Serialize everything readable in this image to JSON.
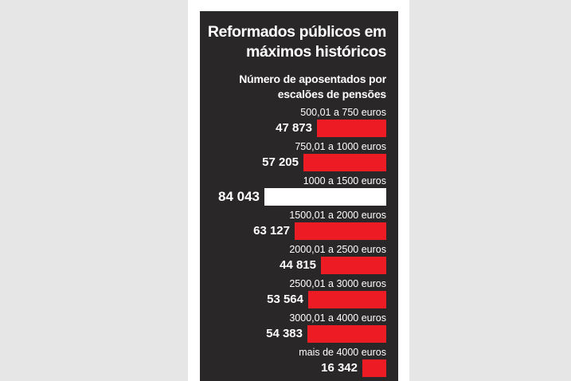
{
  "chart_data": {
    "type": "bar",
    "orientation": "horizontal",
    "title": "Reformados públicos em máximos históricos",
    "subtitle": "Número de aposentados por escalões de pensões",
    "categories": [
      "500,01 a 750 euros",
      "750,01 a 1000 euros",
      "1000 a 1500 euros",
      "1500,01 a 2000 euros",
      "2000,01 a 2500 euros",
      "2500,01 a 3000 euros",
      "3000,01 a 4000 euros",
      "mais de 4000 euros"
    ],
    "values": [
      47873,
      57205,
      84043,
      63127,
      44815,
      53564,
      54383,
      16342
    ],
    "value_labels": [
      "47 873",
      "57 205",
      "84 043",
      "63 127",
      "44 815",
      "53 564",
      "54 383",
      "16 342"
    ],
    "highlight_index": 2,
    "colors": {
      "bar": "#ed1c24",
      "highlight": "#ffffff",
      "panel": "#2a2728",
      "text": "#ffffff"
    }
  }
}
